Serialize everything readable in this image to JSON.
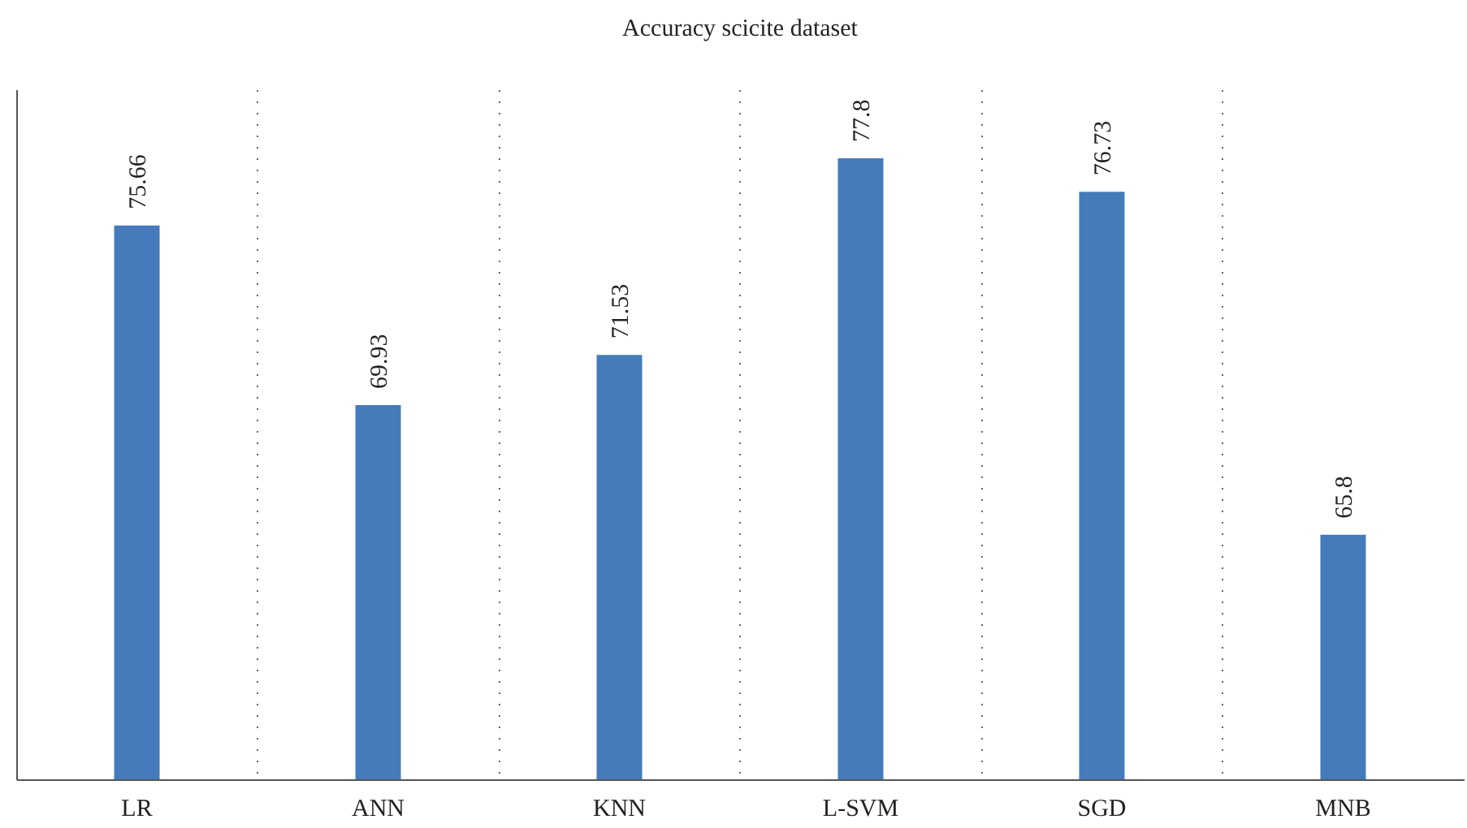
{
  "chart_data": {
    "type": "bar",
    "title": "Accuracy scicite dataset",
    "categories": [
      "LR",
      "ANN",
      "KNN",
      "L-SVM",
      "SGD",
      "MNB"
    ],
    "values": [
      75.66,
      69.93,
      71.53,
      77.8,
      76.73,
      65.8
    ],
    "color": "#457bbb",
    "ylim": [
      58,
      80
    ],
    "data_labels": true,
    "grid": "x"
  }
}
